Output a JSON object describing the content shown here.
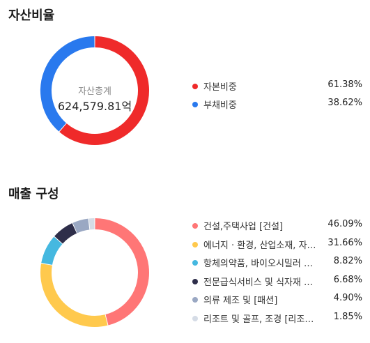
{
  "asset_section": {
    "title": "자산비율"
  },
  "sales_section": {
    "title": "매출 구성"
  },
  "chart_data": [
    {
      "type": "pie",
      "title": "자산비율",
      "center_caption": "자산총계",
      "center_value": "624,579.81억",
      "categories": [
        "자본비중",
        "부채비중"
      ],
      "values": [
        61.38,
        38.62
      ],
      "value_labels": [
        "61.38%",
        "38.62%"
      ],
      "colors": [
        "#ef2a2a",
        "#2979ee"
      ],
      "legend_position": "right"
    },
    {
      "type": "pie",
      "title": "매출 구성",
      "categories": [
        "건설,주택사업 [건설]",
        "에너지 · 환경, 산업소재, 자…",
        "항체의약품, 바이오시밀러 …",
        "전문급식서비스 및 식자재 유…",
        "의류 제조 및 [패션]",
        "리조트 및 골프, 조경 [리조…"
      ],
      "values": [
        46.09,
        31.66,
        8.82,
        6.68,
        4.9,
        1.85
      ],
      "value_labels": [
        "46.09%",
        "31.66%",
        "8.82%",
        "6.68%",
        "4.90%",
        "1.85%"
      ],
      "colors": [
        "#ff7676",
        "#ffc94d",
        "#45b8e0",
        "#2e2e4a",
        "#9aa8c3",
        "#d5dce6"
      ],
      "legend_position": "right"
    }
  ]
}
